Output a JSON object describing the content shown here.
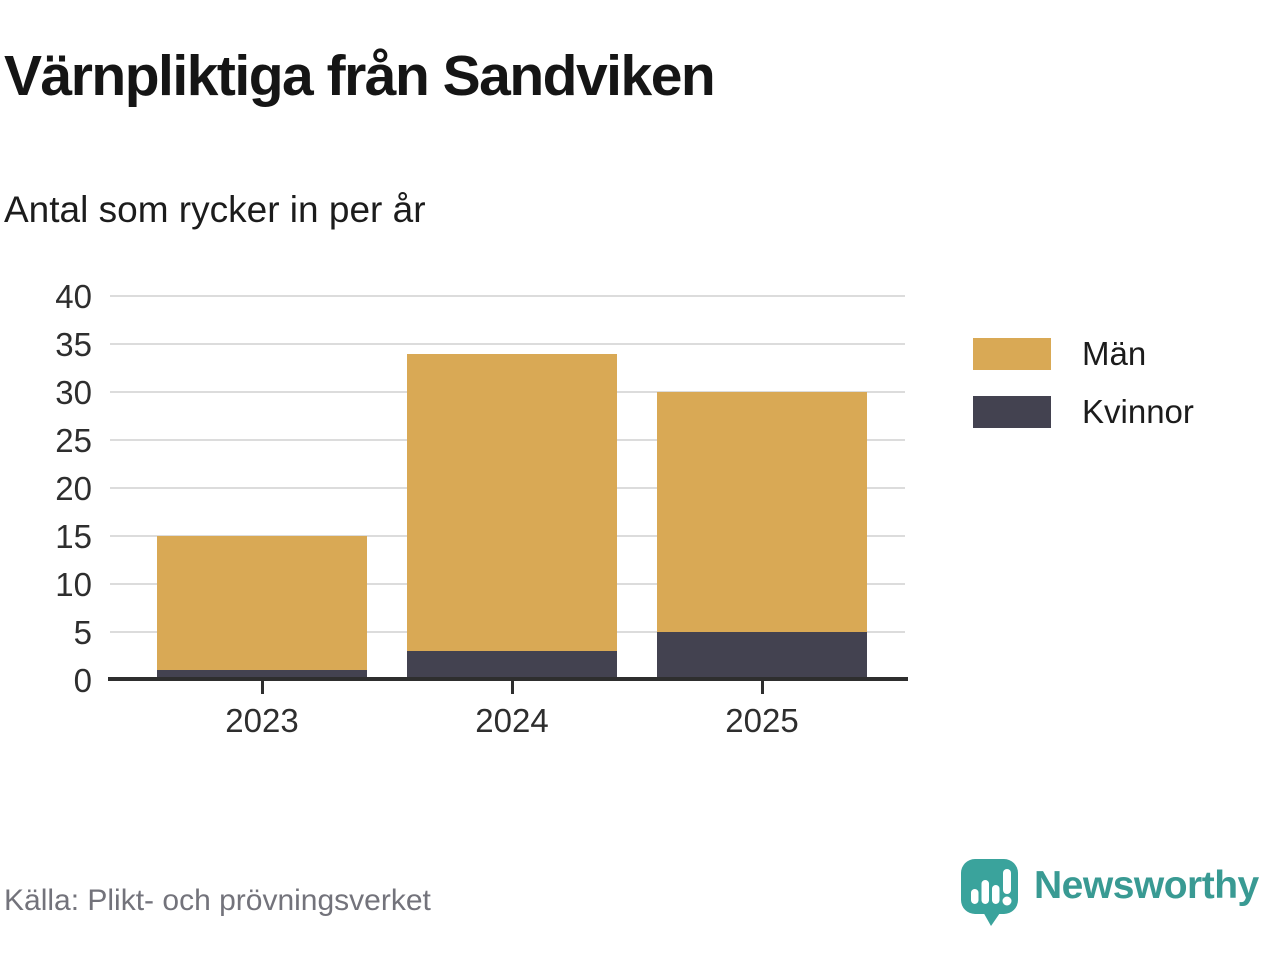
{
  "chart": {
    "title": "Värnpliktiga från Sandviken",
    "subtitle": "Antal som rycker in per år",
    "source": "Källa: Plikt- och prövningsverket"
  },
  "chart_data": {
    "type": "bar",
    "stacked": true,
    "categories": [
      "2023",
      "2024",
      "2025"
    ],
    "series": [
      {
        "name": "Män",
        "color": "#d9a955",
        "values": [
          14,
          31,
          25
        ]
      },
      {
        "name": "Kvinnor",
        "color": "#434250",
        "values": [
          1,
          3,
          5
        ]
      }
    ],
    "stack_order_bottom_to_top": [
      "Kvinnor",
      "Män"
    ],
    "totals": [
      15,
      34,
      30
    ],
    "title": "Värnpliktiga från Sandviken",
    "subtitle": "Antal som rycker in per år",
    "xlabel": "",
    "ylabel": "",
    "ylim": [
      0,
      40
    ],
    "ytick_step": 5,
    "grid": true,
    "legend_position": "right"
  },
  "brand": {
    "name": "Newsworthy",
    "color": "#399a93"
  },
  "colors": {
    "man_gold": "#d9a955",
    "kvinnor_dark": "#434250",
    "gridline": "#dcdcdc",
    "axis": "#2e2e2e",
    "source_gray": "#73737b",
    "brand_teal": "#3aa39c"
  }
}
